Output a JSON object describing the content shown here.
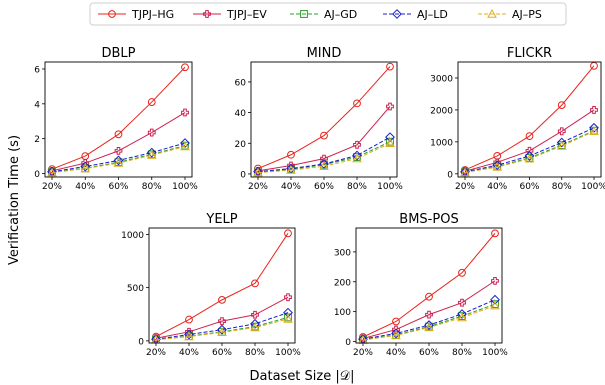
{
  "figure": {
    "ylabel": "Verification Time (s)",
    "xlabel": "Dataset Size |𝒟|"
  },
  "legend": [
    {
      "name": "TJPJ–HG",
      "color": "#e8241c",
      "marker": "circle",
      "dash": "solid"
    },
    {
      "name": "TJPJ–EV",
      "color": "#cc2250",
      "marker": "plus",
      "dash": "solid"
    },
    {
      "name": "AJ–GD",
      "color": "#28a028",
      "marker": "square",
      "dash": "dashed"
    },
    {
      "name": "AJ–LD",
      "color": "#1c1ccc",
      "marker": "diamond",
      "dash": "dashed"
    },
    {
      "name": "AJ–PS",
      "color": "#e0b020",
      "marker": "triangle",
      "dash": "dashed"
    }
  ],
  "chart_data": [
    {
      "type": "line",
      "title": "DBLP",
      "categories": [
        "20%",
        "40%",
        "60%",
        "80%",
        "100%"
      ],
      "ylim": [
        -0.2,
        6.4
      ],
      "yticks": [
        0,
        2,
        4,
        6
      ],
      "series": [
        {
          "name": "TJPJ–HG",
          "values": [
            0.25,
            1.0,
            2.25,
            4.1,
            6.1
          ]
        },
        {
          "name": "TJPJ–EV",
          "values": [
            0.15,
            0.6,
            1.3,
            2.35,
            3.5
          ]
        },
        {
          "name": "AJ–GD",
          "values": [
            0.08,
            0.3,
            0.65,
            1.1,
            1.6
          ]
        },
        {
          "name": "AJ–LD",
          "values": [
            0.1,
            0.4,
            0.75,
            1.2,
            1.75
          ]
        },
        {
          "name": "AJ–PS",
          "values": [
            0.05,
            0.28,
            0.6,
            1.05,
            1.55
          ]
        }
      ]
    },
    {
      "type": "line",
      "title": "MIND",
      "categories": [
        "20%",
        "40%",
        "60%",
        "80%",
        "100%"
      ],
      "ylim": [
        -2,
        73
      ],
      "yticks": [
        0,
        20,
        40,
        60
      ],
      "series": [
        {
          "name": "TJPJ–HG",
          "values": [
            3.5,
            12.5,
            25,
            46,
            70
          ]
        },
        {
          "name": "TJPJ–EV",
          "values": [
            2,
            5.5,
            10,
            19,
            44
          ]
        },
        {
          "name": "AJ–GD",
          "values": [
            1,
            3,
            6,
            11,
            21
          ]
        },
        {
          "name": "AJ–LD",
          "values": [
            1.5,
            3.5,
            6.5,
            12,
            24
          ]
        },
        {
          "name": "AJ–PS",
          "values": [
            0.8,
            2.5,
            5,
            10,
            20
          ]
        }
      ]
    },
    {
      "type": "line",
      "title": "FLICKR",
      "categories": [
        "20%",
        "40%",
        "60%",
        "80%",
        "100%"
      ],
      "ylim": [
        -100,
        3500
      ],
      "yticks": [
        0,
        1000,
        2000,
        3000
      ],
      "series": [
        {
          "name": "TJPJ–HG",
          "values": [
            120,
            560,
            1180,
            2150,
            3380
          ]
        },
        {
          "name": "TJPJ–EV",
          "values": [
            80,
            360,
            720,
            1330,
            2000
          ]
        },
        {
          "name": "AJ–GD",
          "values": [
            50,
            230,
            500,
            900,
            1350
          ]
        },
        {
          "name": "AJ–LD",
          "values": [
            60,
            270,
            560,
            980,
            1440
          ]
        },
        {
          "name": "AJ–PS",
          "values": [
            40,
            210,
            470,
            870,
            1330
          ]
        }
      ]
    },
    {
      "type": "line",
      "title": "YELP",
      "categories": [
        "20%",
        "40%",
        "60%",
        "80%",
        "100%"
      ],
      "ylim": [
        -20,
        1060
      ],
      "yticks": [
        0,
        500,
        1000
      ],
      "series": [
        {
          "name": "TJPJ–HG",
          "values": [
            40,
            200,
            385,
            540,
            1010
          ]
        },
        {
          "name": "TJPJ–EV",
          "values": [
            25,
            85,
            185,
            245,
            410
          ]
        },
        {
          "name": "AJ–GD",
          "values": [
            12,
            45,
            85,
            135,
            220
          ]
        },
        {
          "name": "AJ–LD",
          "values": [
            15,
            60,
            105,
            160,
            265
          ]
        },
        {
          "name": "AJ–PS",
          "values": [
            10,
            40,
            80,
            125,
            205
          ]
        }
      ]
    },
    {
      "type": "line",
      "title": "BMS-POS",
      "categories": [
        "20%",
        "40%",
        "60%",
        "80%",
        "100%"
      ],
      "ylim": [
        -5,
        380
      ],
      "yticks": [
        0,
        100,
        200,
        300
      ],
      "series": [
        {
          "name": "TJPJ–HG",
          "values": [
            15,
            67,
            150,
            230,
            362
          ]
        },
        {
          "name": "TJPJ–EV",
          "values": [
            10,
            40,
            90,
            130,
            203
          ]
        },
        {
          "name": "AJ–GD",
          "values": [
            6,
            22,
            50,
            85,
            125
          ]
        },
        {
          "name": "AJ–LD",
          "values": [
            8,
            27,
            55,
            92,
            140
          ]
        },
        {
          "name": "AJ–PS",
          "values": [
            5,
            20,
            47,
            80,
            120
          ]
        }
      ]
    }
  ]
}
